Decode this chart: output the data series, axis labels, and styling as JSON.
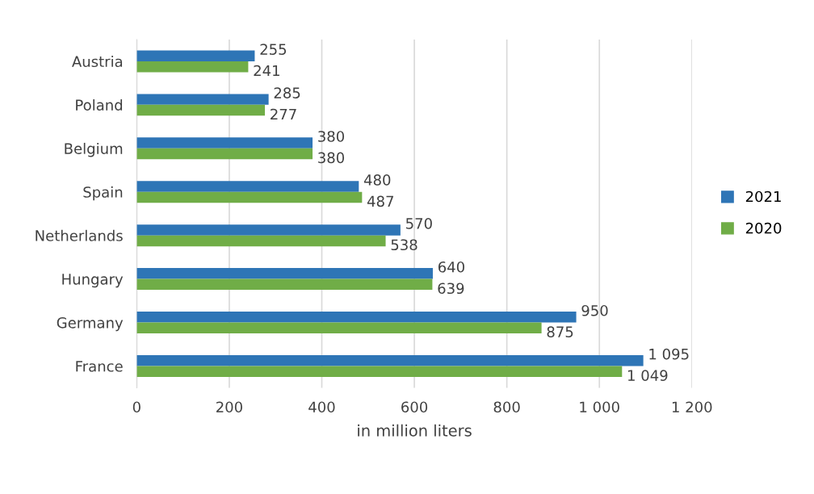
{
  "chart_data": {
    "type": "bar",
    "orientation": "horizontal",
    "xlabel": "in million liters",
    "categories": [
      "Austria",
      "Poland",
      "Belgium",
      "Spain",
      "Netherlands",
      "Hungary",
      "Germany",
      "France"
    ],
    "series": [
      {
        "name": "2021",
        "color": "#2e75b6",
        "values": [
          255,
          285,
          380,
          480,
          570,
          640,
          950,
          1095
        ],
        "value_labels": [
          "255",
          "285",
          "380",
          "480",
          "570",
          "640",
          "950",
          "1 095"
        ]
      },
      {
        "name": "2020",
        "color": "#70ad47",
        "values": [
          241,
          277,
          380,
          487,
          538,
          639,
          875,
          1049
        ],
        "value_labels": [
          "241",
          "277",
          "380",
          "487",
          "538",
          "639",
          "875",
          "1 049"
        ]
      }
    ],
    "xlim": [
      0,
      1200
    ],
    "xticks": [
      0,
      200,
      400,
      600,
      800,
      {
        "value": 1000,
        "label": "1 000"
      },
      {
        "value": 1200,
        "label": "1 200"
      }
    ],
    "grid": "x",
    "legend": "right"
  }
}
